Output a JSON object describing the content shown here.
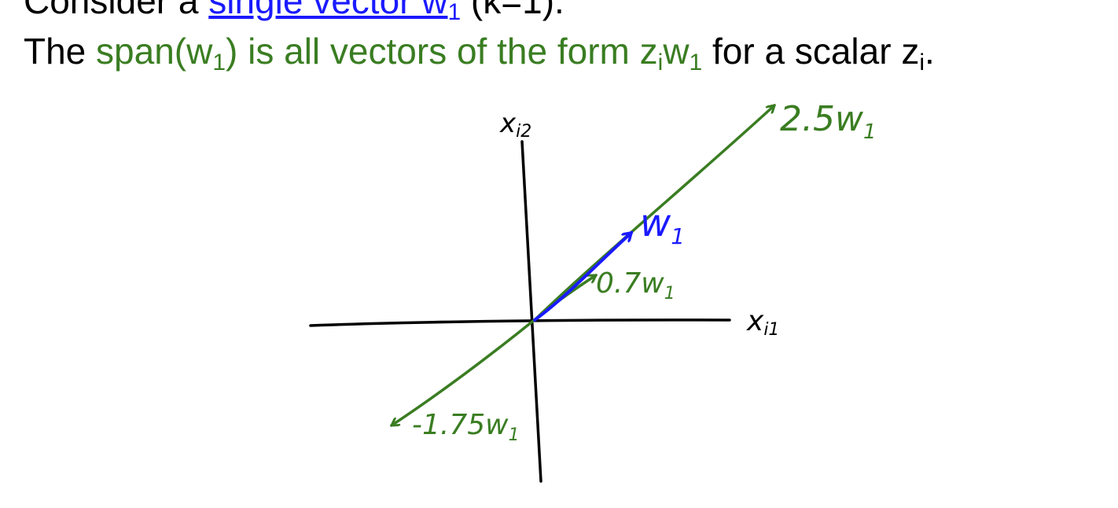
{
  "line1": {
    "prefix": "Consider a ",
    "vector_phrase": "single vector w",
    "vector_sub": "1",
    "suffix": " (k=1)."
  },
  "line2": {
    "prefix": "The ",
    "span_open": "span(w",
    "span_sub": "1",
    "span_close": ") is all vectors of the form z",
    "zi_sub": "i",
    "w_part": "w",
    "w_sub": "1",
    "middle": " for a scalar z",
    "scalar_sub": "i",
    "end": "."
  },
  "diagram": {
    "x_axis_label": "x",
    "x_axis_sub": "i1",
    "y_axis_label": "x",
    "y_axis_sub": "i2",
    "labels": {
      "w1": "w",
      "w1_sub": "1",
      "scaled_07": "0.7w",
      "scaled_07_sub": "1",
      "scaled_25": "2.5w",
      "scaled_25_sub": "1",
      "scaled_neg175": "-1.75w",
      "scaled_neg175_sub": "1"
    },
    "colors": {
      "vector": "#1a1aff",
      "span": "#3a7d22",
      "axes": "#000000"
    }
  }
}
